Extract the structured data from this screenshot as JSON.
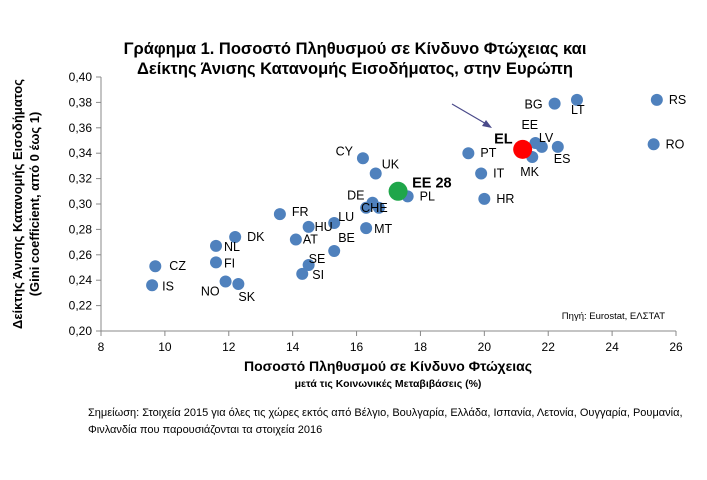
{
  "chart_data": {
    "type": "scatter",
    "title_line1": "Γράφημα 1. Ποσοστό Πληθυσμού σε Κίνδυνο Φτώχειας και",
    "title_line2": "Δείκτης Άνισης Κατανομής Εισοδήματος, στην Ευρώπη",
    "xlabel": "Ποσοστό Πληθυσμού σε Κίνδυνο Φτώχειας",
    "xlabel_sub": "μετά τις Κοινωνικές Μεταβιβάσεις  (%)",
    "ylabel_line1": "Δείκτης Άνισης Κατανομής Εισοδήματος",
    "ylabel_line2": "(Gini coefficient, από 0 έως 1)",
    "xlim": [
      8,
      26
    ],
    "ylim": [
      0.2,
      0.4
    ],
    "xticks": [
      "8",
      "10",
      "12",
      "14",
      "16",
      "18",
      "20",
      "22",
      "24",
      "26"
    ],
    "yticks": [
      "0,20",
      "0,22",
      "0,24",
      "0,26",
      "0,28",
      "0,30",
      "0,32",
      "0,34",
      "0,36",
      "0,38",
      "0,40"
    ],
    "grid": false,
    "source": "Πηγή: Eurostat, ΕΛΣΤΑΤ",
    "colors": {
      "country": "#4f81bd",
      "greece": "#ff0000",
      "eu": "#1fa64a"
    },
    "points": [
      {
        "label": "CZ",
        "x": 9.7,
        "y": 0.251
      },
      {
        "label": "IS",
        "x": 9.6,
        "y": 0.236
      },
      {
        "label": "NO",
        "x": 11.9,
        "y": 0.239
      },
      {
        "label": "SK",
        "x": 12.3,
        "y": 0.237
      },
      {
        "label": "FI",
        "x": 11.6,
        "y": 0.254
      },
      {
        "label": "NL",
        "x": 11.6,
        "y": 0.267
      },
      {
        "label": "DK",
        "x": 12.2,
        "y": 0.274
      },
      {
        "label": "FR",
        "x": 13.6,
        "y": 0.292
      },
      {
        "label": "AT",
        "x": 14.1,
        "y": 0.272
      },
      {
        "label": "HU",
        "x": 14.5,
        "y": 0.282
      },
      {
        "label": "SI",
        "x": 14.3,
        "y": 0.245
      },
      {
        "label": "SE",
        "x": 14.5,
        "y": 0.252
      },
      {
        "label": "BE",
        "x": 15.3,
        "y": 0.263
      },
      {
        "label": "LU",
        "x": 15.3,
        "y": 0.285
      },
      {
        "label": "MT",
        "x": 16.3,
        "y": 0.281
      },
      {
        "label": "DE",
        "x": 16.5,
        "y": 0.301
      },
      {
        "label": "CH",
        "x": 16.3,
        "y": 0.297
      },
      {
        "label": "IE",
        "x": 16.7,
        "y": 0.297
      },
      {
        "label": "CY",
        "x": 16.2,
        "y": 0.336
      },
      {
        "label": "UK",
        "x": 16.6,
        "y": 0.324
      },
      {
        "label": "PL",
        "x": 17.6,
        "y": 0.306
      },
      {
        "label": "PT",
        "x": 19.5,
        "y": 0.34
      },
      {
        "label": "IT",
        "x": 19.9,
        "y": 0.324
      },
      {
        "label": "HR",
        "x": 20.0,
        "y": 0.304
      },
      {
        "label": "MK",
        "x": 21.5,
        "y": 0.337
      },
      {
        "label": "EE",
        "x": 21.6,
        "y": 0.348
      },
      {
        "label": "ES",
        "x": 22.3,
        "y": 0.345
      },
      {
        "label": "LV",
        "x": 21.8,
        "y": 0.345
      },
      {
        "label": "BG",
        "x": 22.2,
        "y": 0.379
      },
      {
        "label": "LT",
        "x": 22.9,
        "y": 0.382
      },
      {
        "label": "RS",
        "x": 25.4,
        "y": 0.382
      },
      {
        "label": "RO",
        "x": 25.3,
        "y": 0.347
      }
    ],
    "highlights": [
      {
        "label": "EL",
        "x": 21.2,
        "y": 0.343,
        "role": "greece"
      },
      {
        "label": "EE 28",
        "x": 17.3,
        "y": 0.31,
        "role": "eu"
      }
    ]
  },
  "note_text": "Σημείωση: Στοιχεία 2015 για όλες τις χώρες εκτός από Βέλγιο, Βουλγαρία, Ελλάδα, Ισπανία, Λετονία, Ουγγαρία, Ρουμανία, Φινλανδία που παρουσιάζονται τα στοιχεία 2016"
}
